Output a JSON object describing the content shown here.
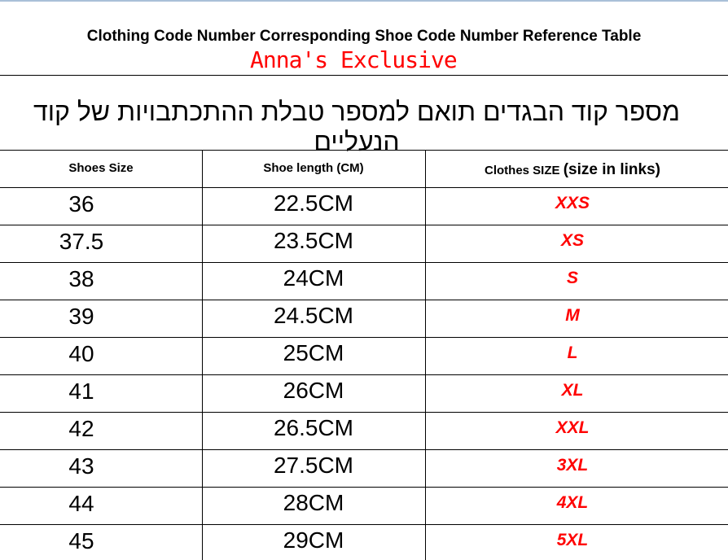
{
  "title": "Clothing Code Number Corresponding Shoe Code Number Reference Table",
  "subtitle_hebrew": "מספר קוד הבגדים תואם למספר טבלת ההתכתבויות של קוד הנעליים",
  "table": {
    "headers": {
      "shoes_size": "Shoes Size",
      "shoe_length": "Shoe length (CM)",
      "clothes_size": "Clothes SIZE",
      "clothes_size_note": "(size in links)"
    },
    "rows": [
      {
        "shoe": "36",
        "length": "22.5CM",
        "clothes": "XXS"
      },
      {
        "shoe": "37.5",
        "length": "23.5CM",
        "clothes": "XS"
      },
      {
        "shoe": "38",
        "length": "24CM",
        "clothes": "S"
      },
      {
        "shoe": "39",
        "length": "24.5CM",
        "clothes": "M"
      },
      {
        "shoe": "40",
        "length": "25CM",
        "clothes": "L"
      },
      {
        "shoe": "41",
        "length": "26CM",
        "clothes": "XL"
      },
      {
        "shoe": "42",
        "length": "26.5CM",
        "clothes": "XXL"
      },
      {
        "shoe": "43",
        "length": "27.5CM",
        "clothes": "3XL"
      },
      {
        "shoe": "44",
        "length": "28CM",
        "clothes": "4XL"
      },
      {
        "shoe": "45",
        "length": "29CM",
        "clothes": "5XL"
      }
    ]
  },
  "watermark": "Anna's Exclusive",
  "colors": {
    "clothes_size_text": "#ff0000",
    "watermark": "#ff0000"
  }
}
